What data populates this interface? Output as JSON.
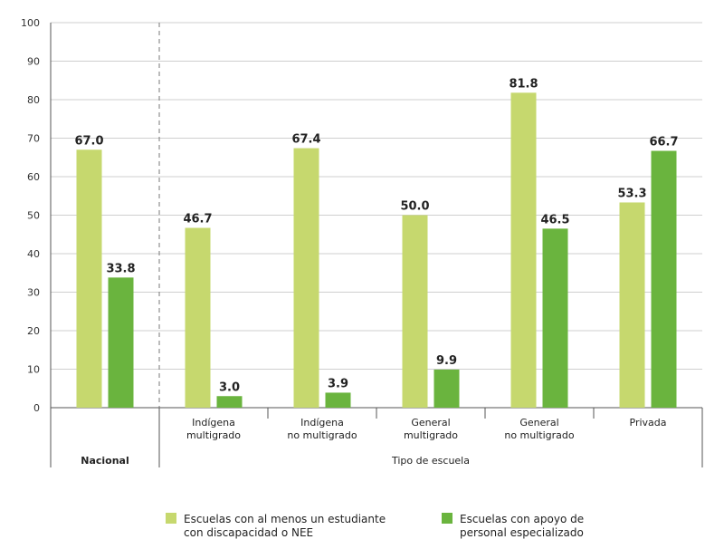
{
  "chart_data": {
    "type": "bar",
    "ylim": [
      0,
      100
    ],
    "yticks": [
      0,
      10,
      20,
      30,
      40,
      50,
      60,
      70,
      80,
      90,
      100
    ],
    "grid": true,
    "legend_position": "bottom",
    "groups": [
      {
        "label": "Nacional",
        "categories": [
          0
        ]
      },
      {
        "label": "Tipo de escuela",
        "categories": [
          1,
          2,
          3,
          4,
          5
        ]
      }
    ],
    "categories": [
      {
        "lines": [
          ""
        ]
      },
      {
        "lines": [
          "Indígena",
          "multigrado"
        ]
      },
      {
        "lines": [
          "Indígena",
          "no multigrado"
        ]
      },
      {
        "lines": [
          "General",
          "multigrado"
        ]
      },
      {
        "lines": [
          "General",
          "no multigrado"
        ]
      },
      {
        "lines": [
          "Privada"
        ]
      }
    ],
    "series": [
      {
        "legend_lines": [
          "Escuelas con al menos un estudiante",
          "con discapacidad o NEE"
        ],
        "color": "#c6d86e",
        "values": [
          67.0,
          46.7,
          67.4,
          50.0,
          81.8,
          53.3
        ],
        "labels": [
          "67.0",
          "46.7",
          "67.4",
          "50.0",
          "81.8",
          "53.3"
        ]
      },
      {
        "legend_lines": [
          "Escuelas con apoyo de",
          "personal especializado"
        ],
        "color": "#6ab43e",
        "values": [
          33.8,
          3.0,
          3.9,
          9.9,
          46.5,
          66.7
        ],
        "labels": [
          "33.8",
          "3.0",
          "3.9",
          "9.9",
          "46.5",
          "66.7"
        ]
      }
    ]
  }
}
